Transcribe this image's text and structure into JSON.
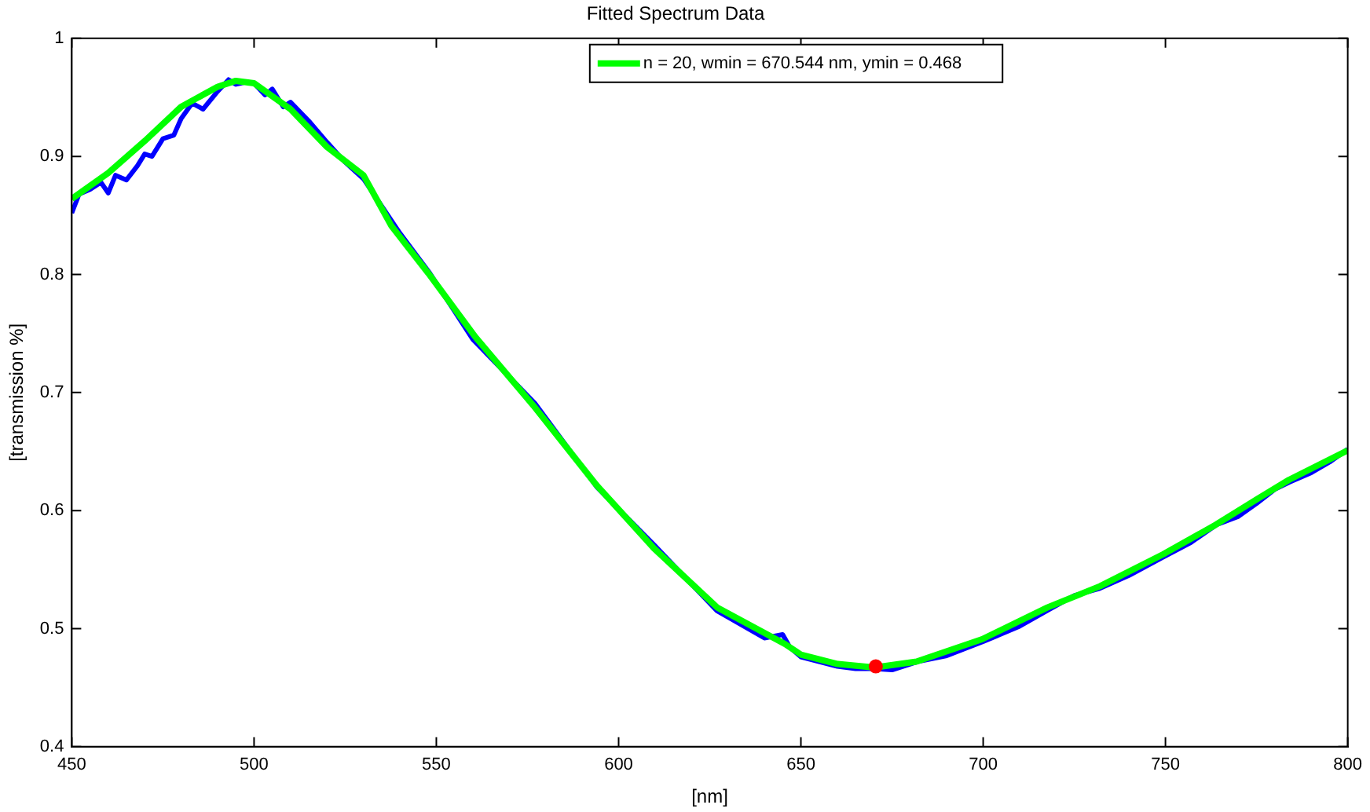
{
  "chart_data": {
    "type": "line",
    "title": "Fitted Spectrum Data",
    "xlabel": "[nm]",
    "ylabel": "[transmission %]",
    "xlim": [
      450,
      800
    ],
    "xticks": [
      450,
      500,
      550,
      600,
      650,
      700,
      750,
      800
    ],
    "ylim": [
      0.4,
      1
    ],
    "yticks": [
      0.4,
      0.5,
      0.6,
      0.7,
      0.8,
      0.9,
      1
    ],
    "grid": false,
    "legend": "top",
    "line_style": "solid",
    "marker": "none",
    "series": [
      {
        "color": "#0000ff",
        "x": [
          450,
          452,
          455,
          458,
          460,
          462,
          465,
          468,
          470,
          472,
          475,
          478,
          480,
          483,
          486,
          490,
          493,
          495,
          498,
          500,
          503,
          505,
          508,
          510,
          515,
          520,
          525,
          530,
          540,
          548,
          560,
          577,
          594,
          610,
          627,
          640,
          645,
          647,
          650,
          655,
          660,
          665,
          670,
          675,
          682,
          690,
          700,
          710,
          718,
          725,
          732,
          740,
          749,
          757,
          764,
          770,
          775,
          780,
          784,
          790,
          795,
          800
        ],
        "values": [
          0.852,
          0.868,
          0.872,
          0.878,
          0.869,
          0.884,
          0.88,
          0.892,
          0.902,
          0.9,
          0.915,
          0.918,
          0.932,
          0.945,
          0.94,
          0.955,
          0.965,
          0.961,
          0.963,
          0.962,
          0.952,
          0.957,
          0.942,
          0.946,
          0.93,
          0.912,
          0.895,
          0.881,
          0.835,
          0.802,
          0.745,
          0.691,
          0.62,
          0.57,
          0.515,
          0.492,
          0.495,
          0.484,
          0.476,
          0.472,
          0.468,
          0.466,
          0.466,
          0.465,
          0.472,
          0.477,
          0.489,
          0.502,
          0.516,
          0.528,
          0.534,
          0.545,
          0.56,
          0.573,
          0.588,
          0.595,
          0.606,
          0.618,
          0.624,
          0.632,
          0.641,
          0.652
        ]
      },
      {
        "name": "n = 20, wmin = 670.544 nm, ymin = 0.468",
        "color": "#00ff00",
        "x": [
          450,
          460,
          470,
          480,
          490,
          495,
          500,
          510,
          520,
          530,
          537.7,
          547.8,
          560.7,
          576.6,
          593.8,
          609.7,
          627,
          645.6,
          650,
          660.1,
          670.2,
          681.7,
          699.7,
          717.7,
          732.1,
          749.4,
          763.8,
          775.3,
          783.9,
          800
        ],
        "values": [
          0.864,
          0.886,
          0.913,
          0.942,
          0.959,
          0.964,
          0.962,
          0.94,
          0.908,
          0.884,
          0.841,
          0.801,
          0.747,
          0.689,
          0.622,
          0.568,
          0.518,
          0.487,
          0.478,
          0.47,
          0.467,
          0.472,
          0.491,
          0.518,
          0.536,
          0.563,
          0.588,
          0.61,
          0.626,
          0.651
        ]
      },
      {
        "type": "scatter",
        "color": "#ff0000",
        "marker": "circle",
        "x": [
          670.544
        ],
        "values": [
          0.468
        ]
      }
    ]
  }
}
